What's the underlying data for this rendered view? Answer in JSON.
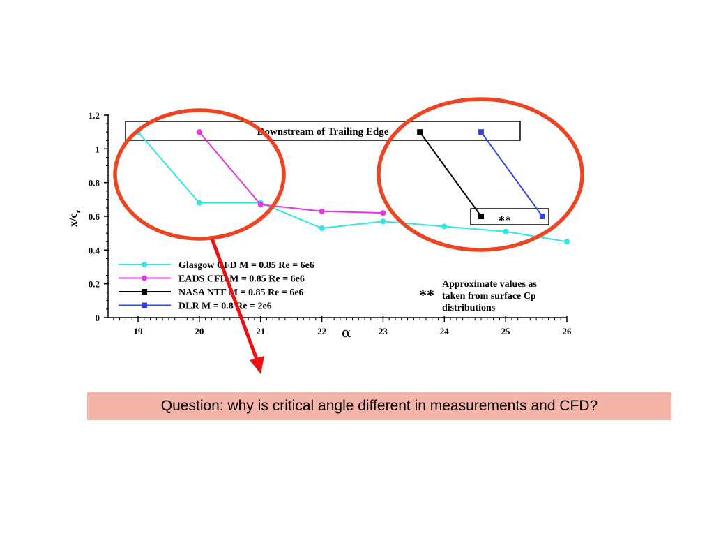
{
  "chart_data": {
    "type": "line",
    "xlabel": "α",
    "ylabel": "x/c",
    "ylabel_sub": "r",
    "xlim": [
      18.5,
      26
    ],
    "ylim": [
      0,
      1.2
    ],
    "xticks": [
      "19",
      "20",
      "21",
      "22",
      "23",
      "24",
      "25",
      "26"
    ],
    "yticks": [
      "0",
      "0.2",
      "0.4",
      "0.6",
      "0.8",
      "1",
      "1.2"
    ],
    "grid": false,
    "legend_position": "lower-left",
    "series": [
      {
        "name": "Glasgow CFD M = 0.85 Re = 6e6",
        "color": "#33e6e6",
        "marker": "circle",
        "points": [
          [
            19,
            1.1
          ],
          [
            20,
            0.68
          ],
          [
            21,
            0.68
          ],
          [
            22,
            0.53
          ],
          [
            23,
            0.57
          ],
          [
            24,
            0.54
          ],
          [
            25,
            0.51
          ],
          [
            26,
            0.45
          ]
        ]
      },
      {
        "name": "EADS CFD M = 0.85 Re = 6e6",
        "color": "#e633e6",
        "marker": "circle",
        "points": [
          [
            20,
            1.1
          ],
          [
            21,
            0.67
          ],
          [
            22,
            0.63
          ],
          [
            23,
            0.62
          ]
        ]
      },
      {
        "name": "NASA NTF M = 0.85 Re = 6e6",
        "color": "#000000",
        "marker": "square",
        "points": [
          [
            23.6,
            1.1
          ],
          [
            24.6,
            0.6
          ]
        ]
      },
      {
        "name": "DLR M = 0.8 Re = 2e6",
        "color": "#3344dd",
        "marker": "square",
        "points": [
          [
            24.6,
            1.1
          ],
          [
            25.6,
            0.6
          ]
        ]
      }
    ],
    "annotations": {
      "downstream_label": "Downstream of Trailing Edge",
      "stars": "**",
      "note_stars": "**",
      "note_lines": [
        "Approximate values as",
        "taken from surface Cp",
        "distributions"
      ]
    }
  },
  "colors": {
    "circle": "#ee4422",
    "arrow": "#ee1111",
    "question_bg": "#f4b4a8"
  },
  "question": "Question: why is critical angle different in measurements and CFD?"
}
